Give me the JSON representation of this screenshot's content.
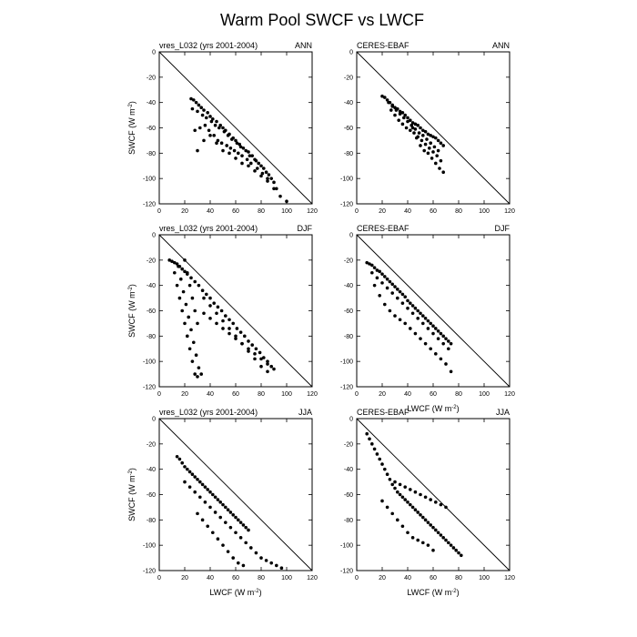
{
  "page": {
    "title": "Warm Pool SWCF vs LWCF"
  },
  "axes": {
    "xlabel": "LWCF (W m",
    "ylabel": "SWCF (W m",
    "unit_exponent": "-2",
    "xlim": [
      0,
      120
    ],
    "ylim": [
      -120,
      0
    ],
    "xticks": [
      0,
      20,
      40,
      60,
      80,
      100,
      120
    ],
    "yticks": [
      0,
      -20,
      -40,
      -60,
      -80,
      -100,
      -120
    ]
  },
  "chart_data": [
    {
      "type": "scatter",
      "title": "",
      "left_label": "vres_L032 (yrs 2001-2004)",
      "right_label": "ANN",
      "xlabel": "",
      "ylabel": "SWCF (W m-2)",
      "xlim": [
        0,
        120
      ],
      "ylim": [
        -120,
        0
      ],
      "grid": false,
      "reference_line": "y = -x",
      "series": [
        {
          "x": [
            25,
            27,
            29,
            31,
            33,
            35,
            38,
            40,
            42,
            45,
            48,
            50,
            52,
            55,
            58,
            60,
            63,
            66,
            70,
            73,
            76,
            80,
            84,
            88,
            92,
            26,
            30,
            34,
            37,
            41,
            44,
            47,
            51,
            54,
            57,
            61,
            64,
            68,
            71,
            75,
            78,
            82,
            86,
            90,
            28,
            32,
            36,
            39,
            43,
            46,
            49,
            53,
            56,
            59,
            62,
            65,
            69,
            72,
            77,
            81,
            85,
            30,
            35,
            40,
            45,
            50,
            55,
            60,
            65,
            70,
            75,
            80,
            85,
            90,
            95,
            100
          ],
          "y": [
            -37,
            -38,
            -40,
            -42,
            -44,
            -46,
            -48,
            -51,
            -53,
            -55,
            -58,
            -60,
            -62,
            -65,
            -68,
            -70,
            -73,
            -76,
            -79,
            -82,
            -86,
            -90,
            -95,
            -100,
            -108,
            -45,
            -47,
            -50,
            -52,
            -55,
            -58,
            -60,
            -63,
            -66,
            -69,
            -72,
            -75,
            -78,
            -82,
            -85,
            -88,
            -92,
            -97,
            -103,
            -62,
            -60,
            -58,
            -62,
            -66,
            -70,
            -72,
            -74,
            -76,
            -78,
            -80,
            -82,
            -85,
            -88,
            -92,
            -96,
            -100,
            -78,
            -70,
            -66,
            -72,
            -78,
            -80,
            -84,
            -88,
            -90,
            -94,
            -98,
            -102,
            -108,
            -114,
            -118
          ]
        }
      ]
    },
    {
      "type": "scatter",
      "title": "",
      "left_label": "CERES-EBAF",
      "right_label": "ANN",
      "xlabel": "",
      "ylabel": "",
      "xlim": [
        0,
        120
      ],
      "ylim": [
        -120,
        0
      ],
      "grid": false,
      "reference_line": "y = -x",
      "series": [
        {
          "x": [
            20,
            22,
            24,
            26,
            28,
            30,
            32,
            34,
            36,
            38,
            40,
            42,
            44,
            46,
            48,
            50,
            52,
            54,
            56,
            58,
            60,
            62,
            64,
            66,
            68,
            25,
            28,
            31,
            34,
            37,
            40,
            43,
            46,
            49,
            52,
            55,
            58,
            61,
            64,
            27,
            30,
            33,
            36,
            39,
            42,
            45,
            48,
            51,
            54,
            57,
            60,
            63,
            66,
            44,
            47,
            50,
            53,
            56,
            59,
            62,
            65,
            68
          ],
          "y": [
            -35,
            -36,
            -38,
            -40,
            -42,
            -44,
            -45,
            -47,
            -48,
            -50,
            -52,
            -54,
            -56,
            -57,
            -58,
            -60,
            -62,
            -63,
            -65,
            -66,
            -67,
            -68,
            -70,
            -72,
            -74,
            -40,
            -43,
            -46,
            -49,
            -52,
            -55,
            -58,
            -61,
            -64,
            -66,
            -69,
            -72,
            -75,
            -78,
            -46,
            -50,
            -54,
            -57,
            -60,
            -62,
            -64,
            -67,
            -70,
            -73,
            -76,
            -79,
            -82,
            -86,
            -60,
            -68,
            -74,
            -78,
            -80,
            -84,
            -88,
            -92,
            -95
          ]
        }
      ]
    },
    {
      "type": "scatter",
      "title": "",
      "left_label": "vres_L032 (yrs 2001-2004)",
      "right_label": "DJF",
      "xlabel": "",
      "ylabel": "SWCF (W m-2)",
      "xlim": [
        0,
        120
      ],
      "ylim": [
        -120,
        0
      ],
      "grid": false,
      "reference_line": "y = -x",
      "series": [
        {
          "x": [
            8,
            10,
            12,
            14,
            16,
            18,
            20,
            22,
            25,
            28,
            31,
            34,
            37,
            40,
            43,
            46,
            49,
            52,
            55,
            58,
            61,
            64,
            67,
            70,
            73,
            76,
            79,
            82,
            85,
            88,
            12,
            14,
            16,
            18,
            20,
            22,
            24,
            26,
            28,
            30,
            15,
            17,
            19,
            21,
            23,
            25,
            27,
            29,
            31,
            33,
            20,
            22,
            24,
            26,
            28,
            30,
            35,
            40,
            45,
            50,
            55,
            60,
            65,
            70,
            75,
            80,
            85,
            90,
            35,
            40,
            45,
            50,
            55,
            60,
            65,
            70,
            75,
            80,
            85
          ],
          "y": [
            -20,
            -21,
            -22,
            -23,
            -25,
            -27,
            -29,
            -31,
            -34,
            -37,
            -40,
            -44,
            -47,
            -50,
            -54,
            -57,
            -60,
            -64,
            -67,
            -70,
            -74,
            -77,
            -80,
            -84,
            -87,
            -90,
            -93,
            -97,
            -100,
            -104,
            -30,
            -40,
            -50,
            -60,
            -70,
            -80,
            -90,
            -100,
            -110,
            -112,
            -25,
            -35,
            -45,
            -55,
            -65,
            -75,
            -85,
            -95,
            -105,
            -110,
            -20,
            -30,
            -40,
            -50,
            -60,
            -70,
            -62,
            -66,
            -70,
            -74,
            -78,
            -82,
            -86,
            -90,
            -94,
            -98,
            -102,
            -106,
            -50,
            -56,
            -62,
            -68,
            -74,
            -80,
            -86,
            -92,
            -98,
            -104,
            -108
          ]
        }
      ]
    },
    {
      "type": "scatter",
      "title": "",
      "left_label": "CERES-EBAF",
      "right_label": "DJF",
      "xlabel": "LWCF (W m-2)",
      "ylabel": "",
      "xlim": [
        0,
        120
      ],
      "ylim": [
        -120,
        0
      ],
      "grid": false,
      "reference_line": "y = -x",
      "series": [
        {
          "x": [
            8,
            10,
            12,
            14,
            16,
            18,
            20,
            22,
            24,
            26,
            28,
            30,
            32,
            34,
            36,
            38,
            40,
            42,
            44,
            46,
            48,
            50,
            52,
            54,
            56,
            58,
            60,
            62,
            64,
            66,
            68,
            70,
            72,
            74,
            14,
            18,
            22,
            26,
            30,
            34,
            38,
            42,
            46,
            50,
            54,
            58,
            62,
            66,
            70,
            74,
            12,
            16,
            20,
            24,
            28,
            32,
            36,
            40,
            44,
            48,
            52,
            56,
            60,
            64,
            68,
            72
          ],
          "y": [
            -22,
            -23,
            -24,
            -26,
            -28,
            -29,
            -31,
            -33,
            -35,
            -37,
            -39,
            -41,
            -43,
            -45,
            -47,
            -49,
            -52,
            -54,
            -56,
            -58,
            -60,
            -62,
            -64,
            -66,
            -68,
            -70,
            -72,
            -74,
            -76,
            -78,
            -80,
            -82,
            -84,
            -86,
            -40,
            -48,
            -55,
            -60,
            -64,
            -67,
            -70,
            -74,
            -78,
            -82,
            -86,
            -90,
            -94,
            -98,
            -102,
            -108,
            -30,
            -34,
            -38,
            -42,
            -46,
            -50,
            -54,
            -58,
            -62,
            -66,
            -70,
            -74,
            -78,
            -82,
            -86,
            -90
          ]
        }
      ]
    },
    {
      "type": "scatter",
      "title": "",
      "left_label": "vres_L032 (yrs 2001-2004)",
      "right_label": "JJA",
      "xlabel": "LWCF (W m-2)",
      "ylabel": "SWCF (W m-2)",
      "xlim": [
        0,
        120
      ],
      "ylim": [
        -120,
        0
      ],
      "grid": false,
      "reference_line": "y = -x",
      "series": [
        {
          "x": [
            14,
            16,
            18,
            20,
            22,
            24,
            26,
            28,
            30,
            32,
            34,
            36,
            38,
            40,
            42,
            44,
            46,
            48,
            50,
            52,
            54,
            56,
            58,
            60,
            62,
            64,
            66,
            68,
            70,
            20,
            24,
            28,
            32,
            36,
            40,
            44,
            48,
            52,
            56,
            60,
            64,
            68,
            72,
            76,
            80,
            84,
            88,
            92,
            96,
            30,
            34,
            38,
            42,
            46,
            50,
            54,
            58,
            62,
            66
          ],
          "y": [
            -30,
            -32,
            -35,
            -38,
            -40,
            -42,
            -44,
            -46,
            -48,
            -50,
            -52,
            -54,
            -56,
            -58,
            -60,
            -62,
            -64,
            -66,
            -68,
            -70,
            -72,
            -74,
            -76,
            -78,
            -80,
            -82,
            -84,
            -86,
            -88,
            -50,
            -54,
            -58,
            -62,
            -66,
            -70,
            -74,
            -78,
            -82,
            -86,
            -90,
            -94,
            -98,
            -102,
            -106,
            -110,
            -112,
            -114,
            -116,
            -118,
            -75,
            -80,
            -85,
            -90,
            -95,
            -100,
            -105,
            -110,
            -114,
            -116
          ]
        }
      ]
    },
    {
      "type": "scatter",
      "title": "",
      "left_label": "CERES-EBAF",
      "right_label": "JJA",
      "xlabel": "LWCF (W m-2)",
      "ylabel": "",
      "xlim": [
        0,
        120
      ],
      "ylim": [
        -120,
        0
      ],
      "grid": false,
      "reference_line": "y = -x",
      "series": [
        {
          "x": [
            8,
            10,
            12,
            14,
            16,
            18,
            20,
            22,
            24,
            26,
            28,
            30,
            32,
            34,
            36,
            38,
            40,
            42,
            44,
            46,
            48,
            50,
            52,
            54,
            56,
            58,
            60,
            62,
            64,
            66,
            68,
            70,
            72,
            74,
            76,
            78,
            80,
            82,
            30,
            34,
            38,
            42,
            46,
            50,
            54,
            58,
            62,
            66,
            70,
            20,
            24,
            28,
            32,
            36,
            40,
            44,
            48,
            52,
            56,
            60
          ],
          "y": [
            -12,
            -16,
            -20,
            -24,
            -28,
            -32,
            -36,
            -40,
            -44,
            -48,
            -52,
            -55,
            -58,
            -60,
            -62,
            -64,
            -66,
            -68,
            -70,
            -72,
            -74,
            -76,
            -78,
            -80,
            -82,
            -84,
            -86,
            -88,
            -90,
            -92,
            -94,
            -96,
            -98,
            -100,
            -102,
            -104,
            -106,
            -108,
            -50,
            -52,
            -54,
            -56,
            -58,
            -60,
            -62,
            -64,
            -66,
            -68,
            -70,
            -65,
            -70,
            -75,
            -80,
            -85,
            -90,
            -94,
            -96,
            -98,
            -100,
            -104
          ]
        }
      ]
    }
  ]
}
